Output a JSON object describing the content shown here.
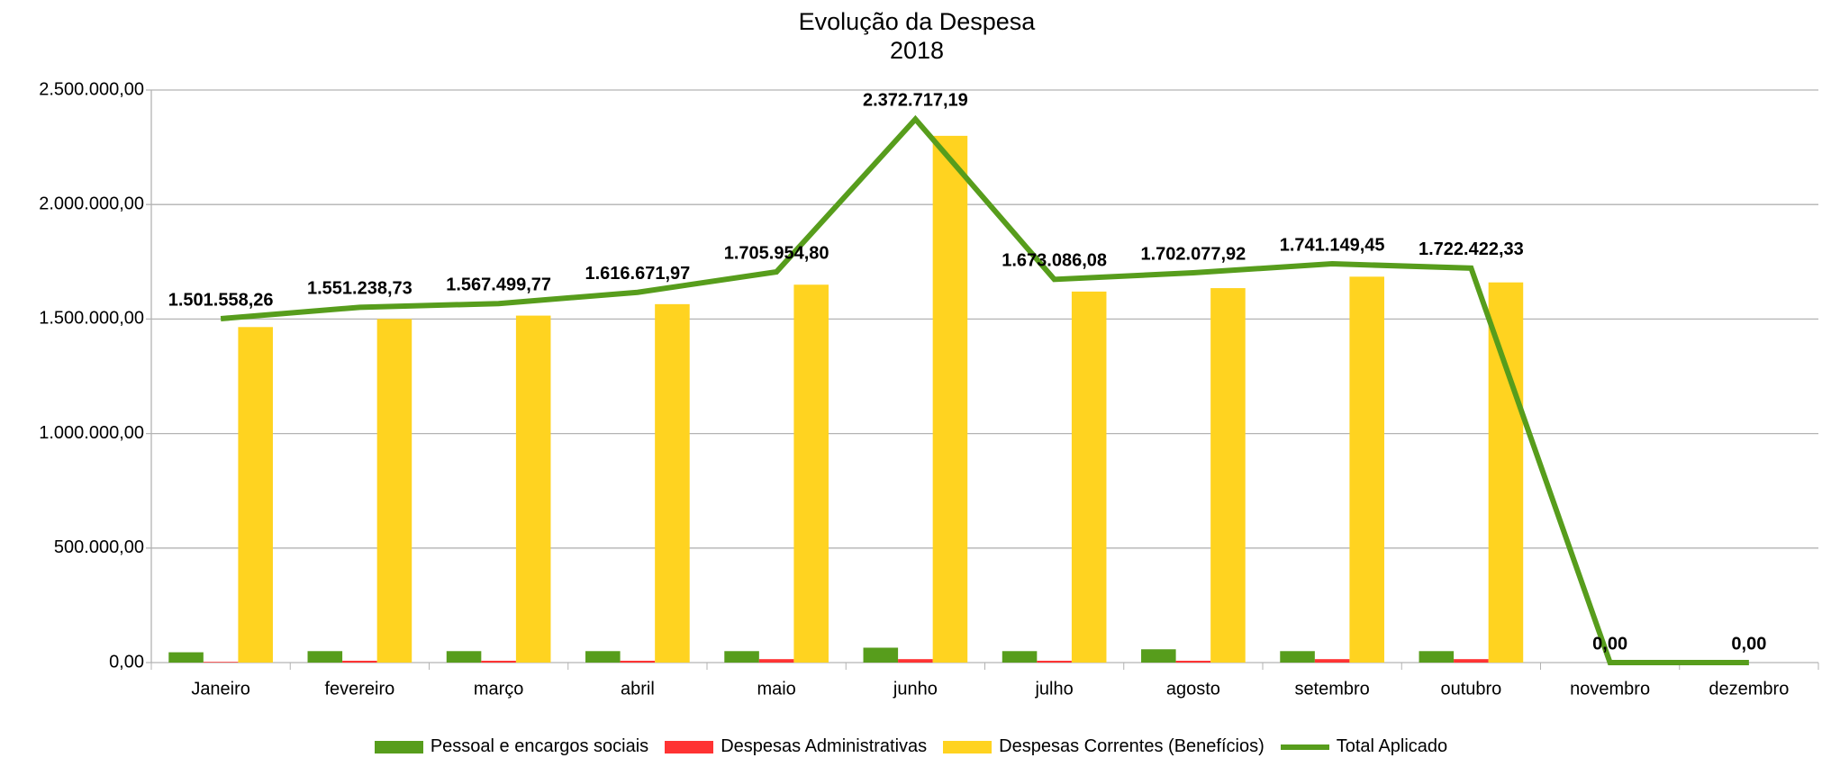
{
  "chart_data": {
    "type": "bar_line",
    "title": "Evolução da Despesa",
    "subtitle": "2018",
    "categories": [
      "Janeiro",
      "fevereiro",
      "março",
      "abril",
      "maio",
      "junho",
      "julho",
      "agosto",
      "setembro",
      "outubro",
      "novembro",
      "dezembro"
    ],
    "series": [
      {
        "name": "Pessoal e encargos sociais",
        "type": "bar",
        "color": "#579d1c",
        "values": [
          45000,
          50000,
          50000,
          50000,
          50000,
          65000,
          50000,
          58000,
          50000,
          50000,
          0,
          0
        ]
      },
      {
        "name": "Despesas Administrativas",
        "type": "bar",
        "color": "#ff3333",
        "values": [
          3000,
          8000,
          8000,
          8000,
          15000,
          15000,
          8000,
          8000,
          15000,
          15000,
          0,
          0
        ]
      },
      {
        "name": "Despesas Correntes (Benefícios)",
        "type": "bar",
        "color": "#ffd320",
        "values": [
          1465000,
          1500000,
          1515000,
          1565000,
          1650000,
          2300000,
          1620000,
          1635000,
          1685000,
          1660000,
          0,
          0
        ]
      },
      {
        "name": "Total Aplicado",
        "type": "line",
        "color": "#579d1c",
        "values": [
          1501558.26,
          1551238.73,
          1567499.77,
          1616671.97,
          1705954.8,
          2372717.19,
          1673086.08,
          1702077.92,
          1741149.45,
          1722422.33,
          0,
          0
        ],
        "value_labels": [
          "1.501.558,26",
          "1.551.238,73",
          "1.567.499,77",
          "1.616.671,97",
          "1.705.954,80",
          "2.372.717,19",
          "1.673.086,08",
          "1.702.077,92",
          "1.741.149,45",
          "1.722.422,33",
          "0,00",
          "0,00"
        ]
      }
    ],
    "ylim": [
      0,
      2500000
    ],
    "yticks": [
      {
        "value": 0,
        "label": "0,00"
      },
      {
        "value": 500000,
        "label": "500.000,00"
      },
      {
        "value": 1000000,
        "label": "1.000.000,00"
      },
      {
        "value": 1500000,
        "label": "1.500.000,00"
      },
      {
        "value": 2000000,
        "label": "2.000.000,00"
      },
      {
        "value": 2500000,
        "label": "2.500.000,00"
      }
    ],
    "grid": true
  }
}
